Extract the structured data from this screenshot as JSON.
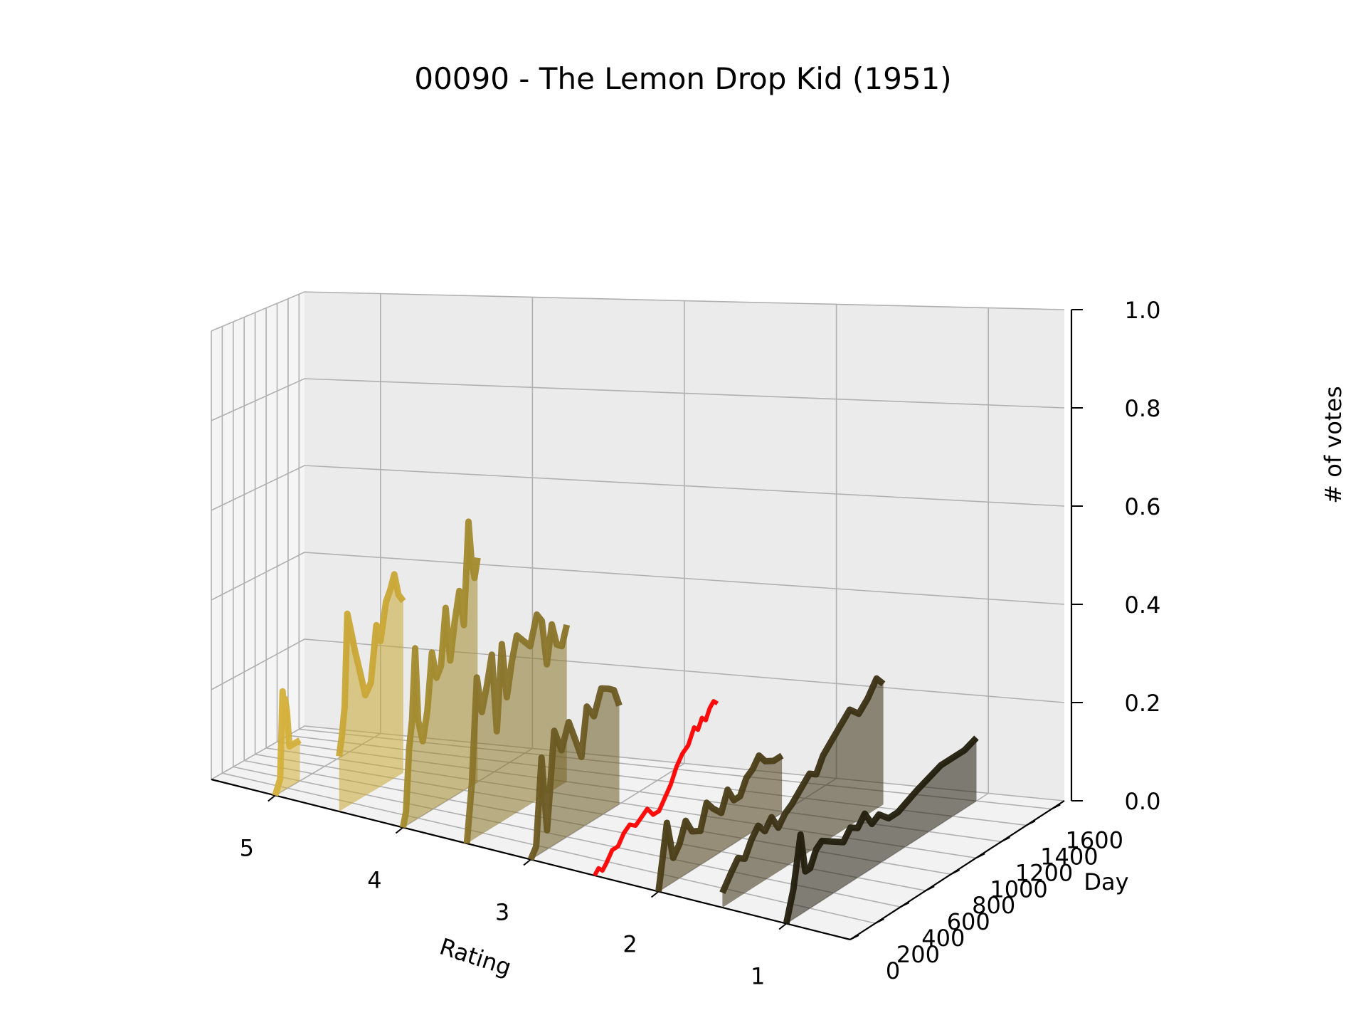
{
  "chart_data": {
    "type": "3d-line",
    "title": "00090 - The Lemon Drop Kid (1951)",
    "xlabel": "Rating",
    "ylabel": "Day",
    "zlabel": "# of votes",
    "x_ticks": [
      "5",
      "4",
      "3",
      "2",
      "1"
    ],
    "y_ticks": [
      "0",
      "200",
      "400",
      "600",
      "800",
      "1000",
      "1200",
      "1400",
      "1600"
    ],
    "z_ticks": [
      "0.0",
      "0.2",
      "0.4",
      "0.6",
      "0.8",
      "1.0"
    ],
    "xlim": [
      0.5,
      5.5
    ],
    "ylim": [
      0,
      1700
    ],
    "zlim": [
      0,
      1
    ],
    "grid": true,
    "series": [
      {
        "rating": 5,
        "color": "#d4b03a",
        "points": [
          [
            0,
            0.0
          ],
          [
            80,
            0.03
          ],
          [
            120,
            0.22
          ],
          [
            140,
            0.18
          ],
          [
            160,
            0.2
          ],
          [
            190,
            0.17
          ],
          [
            230,
            0.09
          ],
          [
            300,
            0.09
          ],
          [
            400,
            0.09
          ]
        ]
      },
      {
        "rating": 4.5,
        "color": "#c9a735",
        "points": [
          [
            0,
            0.12
          ],
          [
            40,
            0.16
          ],
          [
            80,
            0.22
          ],
          [
            120,
            0.42
          ],
          [
            170,
            0.38
          ],
          [
            230,
            0.33
          ],
          [
            300,
            0.28
          ],
          [
            380,
            0.22
          ],
          [
            460,
            0.24
          ],
          [
            540,
            0.36
          ],
          [
            600,
            0.32
          ],
          [
            680,
            0.4
          ],
          [
            740,
            0.42
          ],
          [
            800,
            0.45
          ],
          [
            860,
            0.4
          ],
          [
            930,
            0.38
          ]
        ]
      },
      {
        "rating": 4,
        "color": "#a28a2c",
        "points": [
          [
            0,
            0.0
          ],
          [
            40,
            0.03
          ],
          [
            80,
            0.16
          ],
          [
            120,
            0.22
          ],
          [
            160,
            0.37
          ],
          [
            200,
            0.21
          ],
          [
            260,
            0.16
          ],
          [
            320,
            0.22
          ],
          [
            380,
            0.34
          ],
          [
            440,
            0.28
          ],
          [
            500,
            0.3
          ],
          [
            560,
            0.42
          ],
          [
            620,
            0.3
          ],
          [
            680,
            0.38
          ],
          [
            740,
            0.44
          ],
          [
            800,
            0.36
          ],
          [
            860,
            0.58
          ],
          [
            900,
            0.49
          ],
          [
            940,
            0.45
          ],
          [
            980,
            0.49
          ]
        ]
      },
      {
        "rating": 3.5,
        "color": "#8a742a",
        "points": [
          [
            0,
            0.0
          ],
          [
            60,
            0.12
          ],
          [
            120,
            0.34
          ],
          [
            180,
            0.26
          ],
          [
            240,
            0.31
          ],
          [
            300,
            0.37
          ],
          [
            360,
            0.2
          ],
          [
            420,
            0.38
          ],
          [
            480,
            0.26
          ],
          [
            540,
            0.33
          ],
          [
            600,
            0.38
          ],
          [
            680,
            0.36
          ],
          [
            760,
            0.34
          ],
          [
            840,
            0.4
          ],
          [
            900,
            0.38
          ],
          [
            960,
            0.28
          ],
          [
            1020,
            0.36
          ],
          [
            1080,
            0.31
          ],
          [
            1140,
            0.3
          ],
          [
            1200,
            0.34
          ]
        ]
      },
      {
        "rating": 3,
        "color": "#6b5a22",
        "points": [
          [
            0,
            0.0
          ],
          [
            60,
            0.02
          ],
          [
            120,
            0.2
          ],
          [
            180,
            0.04
          ],
          [
            260,
            0.24
          ],
          [
            340,
            0.19
          ],
          [
            420,
            0.24
          ],
          [
            500,
            0.19
          ],
          [
            560,
            0.15
          ],
          [
            620,
            0.25
          ],
          [
            700,
            0.22
          ],
          [
            780,
            0.27
          ],
          [
            860,
            0.26
          ],
          [
            920,
            0.25
          ],
          [
            980,
            0.21
          ]
        ]
      },
      {
        "rating": 2,
        "color": "#4a3d16",
        "points": [
          [
            0,
            0.0
          ],
          [
            80,
            0.13
          ],
          [
            140,
            0.05
          ],
          [
            200,
            0.07
          ],
          [
            260,
            0.11
          ],
          [
            320,
            0.08
          ],
          [
            400,
            0.07
          ],
          [
            460,
            0.12
          ],
          [
            520,
            0.1
          ],
          [
            600,
            0.08
          ],
          [
            660,
            0.12
          ],
          [
            720,
            0.09
          ],
          [
            780,
            0.09
          ],
          [
            840,
            0.12
          ],
          [
            900,
            0.13
          ],
          [
            960,
            0.15
          ],
          [
            1020,
            0.13
          ],
          [
            1100,
            0.12
          ],
          [
            1180,
            0.12
          ]
        ]
      },
      {
        "rating": 1.5,
        "color": "#3a3014",
        "points": [
          [
            0,
            0.03
          ],
          [
            80,
            0.06
          ],
          [
            140,
            0.08
          ],
          [
            200,
            0.07
          ],
          [
            260,
            0.1
          ],
          [
            320,
            0.12
          ],
          [
            380,
            0.1
          ],
          [
            440,
            0.12
          ],
          [
            500,
            0.09
          ],
          [
            560,
            0.11
          ],
          [
            620,
            0.12
          ],
          [
            700,
            0.14
          ],
          [
            780,
            0.16
          ],
          [
            840,
            0.15
          ],
          [
            900,
            0.18
          ],
          [
            980,
            0.2
          ],
          [
            1060,
            0.22
          ],
          [
            1140,
            0.24
          ],
          [
            1220,
            0.22
          ],
          [
            1300,
            0.24
          ],
          [
            1380,
            0.27
          ],
          [
            1440,
            0.25
          ]
        ]
      },
      {
        "rating": 1,
        "color": "#221d0d",
        "points": [
          [
            0,
            0.0
          ],
          [
            60,
            0.06
          ],
          [
            120,
            0.16
          ],
          [
            160,
            0.08
          ],
          [
            200,
            0.08
          ],
          [
            250,
            0.11
          ],
          [
            300,
            0.12
          ],
          [
            360,
            0.11
          ],
          [
            420,
            0.1
          ],
          [
            480,
            0.09
          ],
          [
            540,
            0.11
          ],
          [
            600,
            0.1
          ],
          [
            660,
            0.12
          ],
          [
            720,
            0.09
          ],
          [
            780,
            0.1
          ],
          [
            860,
            0.08
          ],
          [
            940,
            0.08
          ],
          [
            1020,
            0.09
          ],
          [
            1100,
            0.1
          ],
          [
            1200,
            0.11
          ],
          [
            1300,
            0.12
          ],
          [
            1400,
            0.12
          ],
          [
            1500,
            0.12
          ],
          [
            1600,
            0.13
          ]
        ]
      },
      {
        "rating": 2.5,
        "color": "#ff0000",
        "points": [
          [
            0,
            0.0
          ],
          [
            40,
            0.01
          ],
          [
            80,
            0.0
          ],
          [
            120,
            0.01
          ],
          [
            180,
            0.03
          ],
          [
            240,
            0.03
          ],
          [
            300,
            0.05
          ],
          [
            360,
            0.06
          ],
          [
            420,
            0.05
          ],
          [
            480,
            0.06
          ],
          [
            540,
            0.07
          ],
          [
            600,
            0.05
          ],
          [
            660,
            0.05
          ],
          [
            720,
            0.07
          ],
          [
            780,
            0.09
          ],
          [
            840,
            0.12
          ],
          [
            900,
            0.14
          ],
          [
            960,
            0.15
          ],
          [
            1020,
            0.18
          ],
          [
            1060,
            0.17
          ],
          [
            1100,
            0.19
          ],
          [
            1140,
            0.18
          ],
          [
            1180,
            0.2
          ],
          [
            1220,
            0.21
          ],
          [
            1260,
            0.2
          ]
        ]
      }
    ]
  }
}
